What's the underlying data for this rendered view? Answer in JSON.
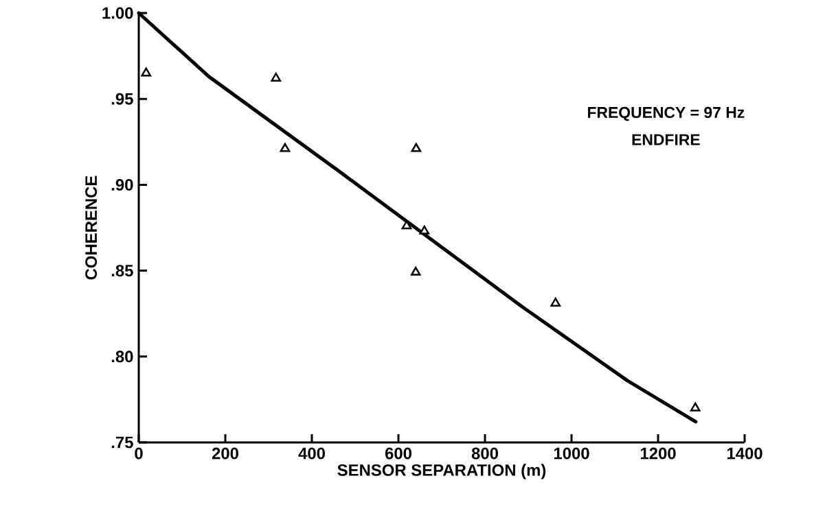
{
  "chart_data": {
    "type": "scatter",
    "xlabel": "SENSOR SEPARATION (m)",
    "ylabel": "COHERENCE",
    "annotations": [
      "FREQUENCY = 97 Hz",
      "ENDFIRE"
    ],
    "xlim": [
      0,
      1400
    ],
    "ylim": [
      0.75,
      1.0
    ],
    "xticks": [
      0,
      200,
      400,
      600,
      800,
      1000,
      1200,
      1400
    ],
    "yticks": [
      {
        "value": 0.75,
        "label": ".75"
      },
      {
        "value": 0.8,
        "label": ".80"
      },
      {
        "value": 0.85,
        "label": ".85"
      },
      {
        "value": 0.9,
        "label": ".90"
      },
      {
        "value": 0.95,
        "label": ".95"
      },
      {
        "value": 1.0,
        "label": "1.00"
      }
    ],
    "series": [
      {
        "type": "line",
        "color": "#000000",
        "marker": "none",
        "line_style": "solid",
        "x": [
          0,
          162,
          473,
          886,
          1129,
          1287
        ],
        "values": [
          1.0,
          0.963,
          0.906,
          0.829,
          0.786,
          0.762
        ]
      },
      {
        "type": "scatter",
        "color": "#000000",
        "marker": "triangle",
        "x": [
          17,
          317,
          338,
          641,
          619,
          660,
          640,
          963,
          1286
        ],
        "values": [
          0.965,
          0.962,
          0.921,
          0.921,
          0.876,
          0.873,
          0.849,
          0.831,
          0.77
        ]
      }
    ]
  }
}
